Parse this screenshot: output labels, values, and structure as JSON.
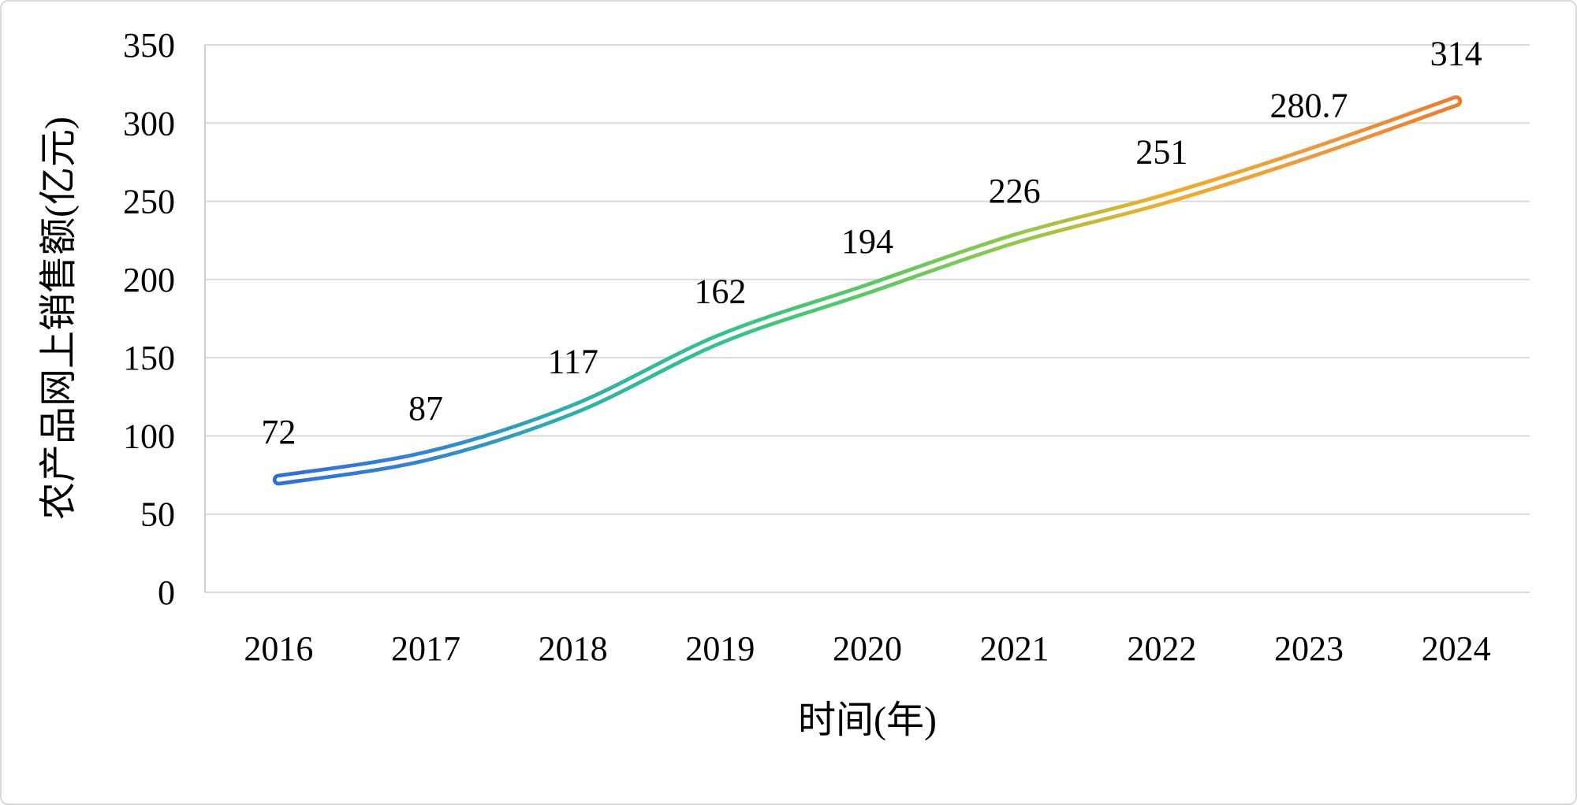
{
  "chart_data": {
    "type": "line",
    "title": "",
    "categories": [
      "2016",
      "2017",
      "2018",
      "2019",
      "2020",
      "2021",
      "2022",
      "2023",
      "2024"
    ],
    "series": [
      {
        "name": "农产品网上销售额",
        "values": [
          72,
          87,
          117,
          162,
          194,
          226,
          251,
          280.7,
          314
        ]
      }
    ],
    "point_labels": [
      "72",
      "87",
      "117",
      "162",
      "194",
      "226",
      "251",
      "280.7",
      "314"
    ],
    "xlabel": "时间(年)",
    "ylabel": "农产品网上销售额(亿元)",
    "ylim": [
      0,
      350
    ],
    "ytick_step": 50,
    "ytick_labels": [
      "0",
      "50",
      "100",
      "150",
      "200",
      "250",
      "300",
      "350"
    ],
    "grid": "horizontal",
    "legend": "none",
    "line_style": "smooth tube with white core, round caps",
    "line_gradient_colors": [
      "#2E6FE0",
      "#3383D8",
      "#2BB1A9",
      "#33C28B",
      "#57CA61",
      "#8FC94B",
      "#F2AC26",
      "#F0993B",
      "#EF7B2B"
    ],
    "gridline_color": "#DADADA",
    "axis_line_color": "#D0D0D0",
    "text_color": "#000000",
    "background_color": "#FFFFFF",
    "border_color": "#D9D9D9"
  }
}
